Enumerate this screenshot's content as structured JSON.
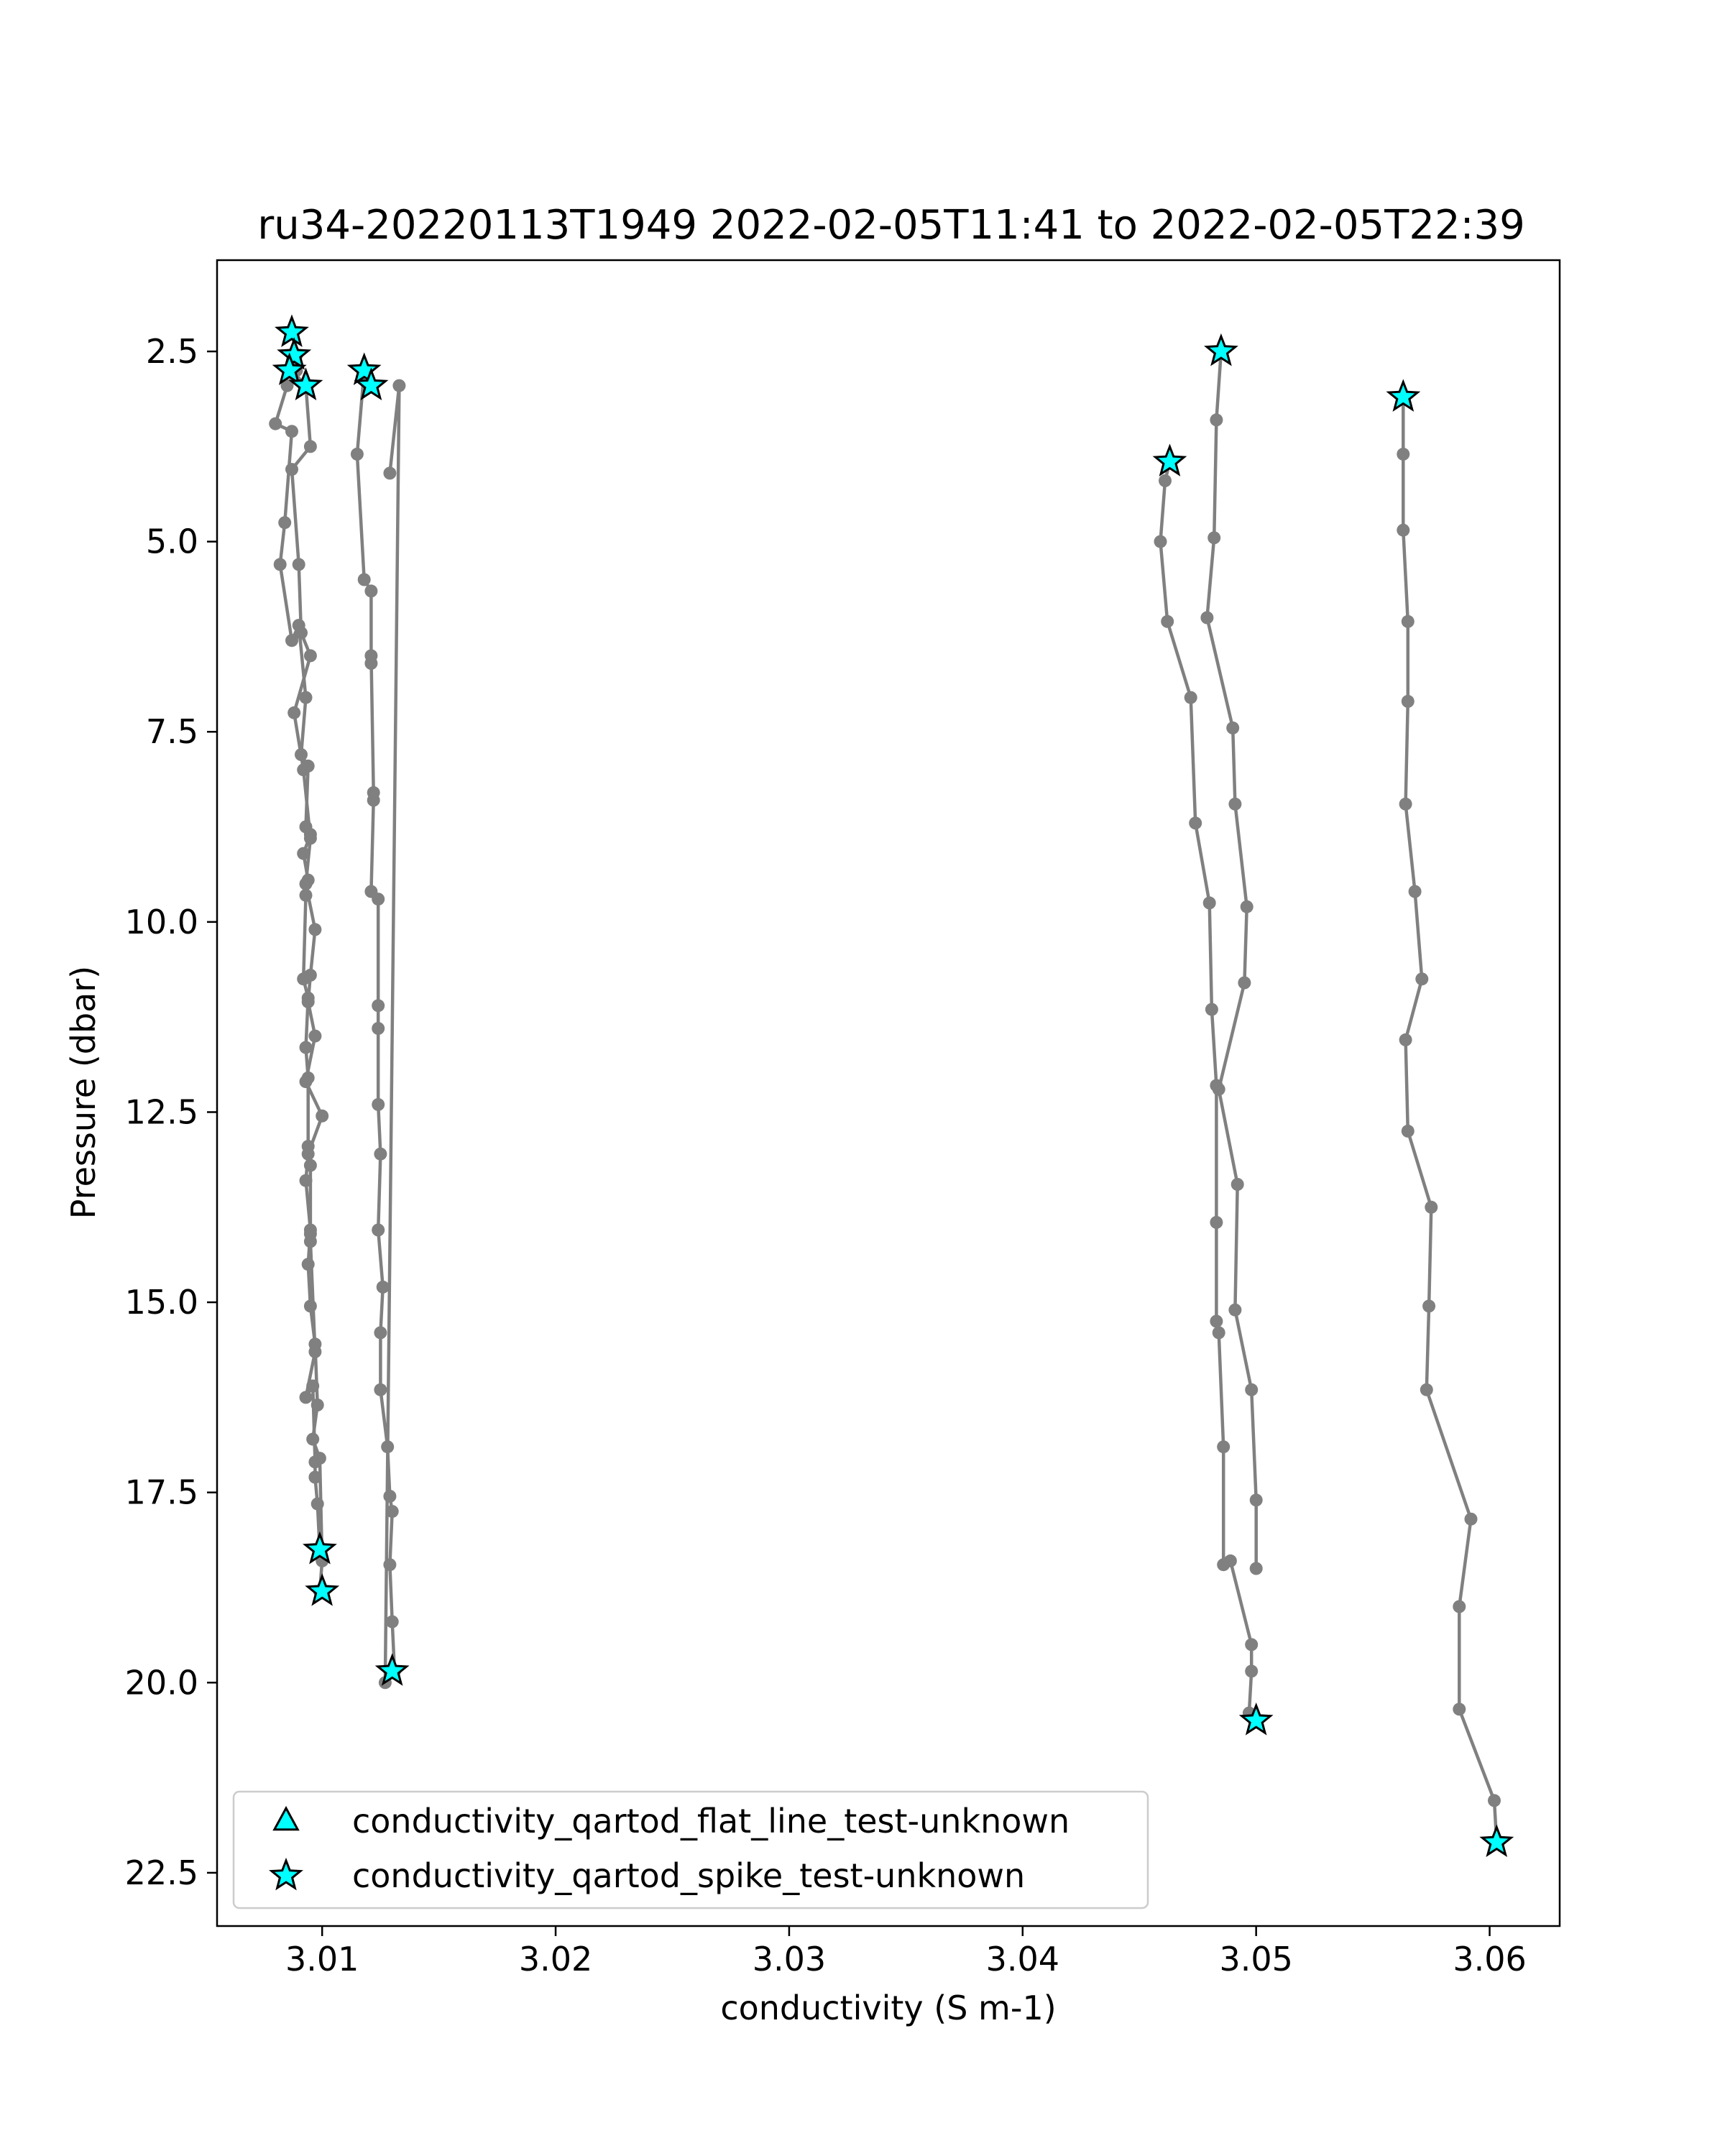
{
  "chart_data": {
    "type": "scatter",
    "title": "ru34-20220113T1949 2022-02-05T11:41 to 2022-02-05T22:39",
    "xlabel": "conductivity (S m-1)",
    "ylabel": "Pressure (dbar)",
    "xlim": [
      3.0055,
      3.063
    ],
    "ylim": [
      1.3,
      23.2
    ],
    "y_inverted": true,
    "grid": false,
    "legend_position": "lower-left",
    "x_ticks": [
      3.01,
      3.02,
      3.03,
      3.04,
      3.05,
      3.06
    ],
    "x_tick_labels": [
      "3.01",
      "3.02",
      "3.03",
      "3.04",
      "3.05",
      "3.06"
    ],
    "y_ticks": [
      2.5,
      5.0,
      7.5,
      10.0,
      12.5,
      15.0,
      17.5,
      20.0,
      22.5
    ],
    "y_tick_labels": [
      "2.5",
      "5.0",
      "7.5",
      "10.0",
      "12.5",
      "15.0",
      "17.5",
      "20.0",
      "22.5"
    ],
    "colors": {
      "profile_line": "#808080",
      "marker_fill": "#00ffff",
      "marker_edge": "#000000"
    },
    "profiles": [
      {
        "x": [
          3.0087,
          3.0089,
          3.0087,
          3.0093,
          3.0095,
          3.0087,
          3.009,
          3.0091,
          3.0095,
          3.0088,
          3.0092,
          3.0095,
          3.0093,
          3.0097,
          3.0095,
          3.0094,
          3.0097,
          3.0093,
          3.01,
          3.0094,
          3.0093,
          3.0095,
          3.0094,
          3.0095,
          3.0097,
          3.0098,
          3.0096,
          3.0099,
          3.01,
          3.0099
        ],
        "y": [
          2.25,
          2.55,
          2.75,
          2.95,
          3.75,
          4.05,
          5.3,
          6.2,
          6.5,
          7.25,
          8.0,
          8.9,
          9.5,
          10.1,
          10.7,
          11.05,
          11.5,
          12.1,
          12.55,
          13.05,
          13.4,
          14.05,
          14.5,
          15.05,
          15.55,
          16.35,
          16.8,
          17.05,
          18.4,
          18.8
        ]
      },
      {
        "x": [
          3.0089,
          3.0085,
          3.008,
          3.0087,
          3.0084,
          3.0082,
          3.0087,
          3.009,
          3.0093,
          3.0091,
          3.0094,
          3.0093,
          3.0095,
          3.0092,
          3.0094,
          3.0093,
          3.0092,
          3.0094,
          3.0093,
          3.0094,
          3.0094,
          3.0095,
          3.0095,
          3.0095,
          3.0097,
          3.0093,
          3.0096,
          3.0097,
          3.0097,
          3.0098,
          3.0099
        ],
        "y": [
          2.75,
          2.95,
          3.45,
          3.55,
          4.75,
          5.3,
          6.3,
          6.1,
          7.05,
          7.8,
          7.95,
          8.75,
          8.85,
          9.1,
          9.45,
          9.65,
          10.75,
          11.0,
          11.65,
          12.05,
          12.95,
          13.2,
          14.1,
          14.2,
          15.65,
          16.25,
          16.1,
          17.1,
          17.3,
          17.65,
          18.25
        ]
      },
      {
        "x": [
          3.0118,
          3.0115,
          3.0118,
          3.0121,
          3.0121,
          3.0121,
          3.0122,
          3.0122,
          3.0121,
          3.0124,
          3.0124,
          3.0124,
          3.0124,
          3.0125,
          3.0124,
          3.0126,
          3.0125,
          3.0125,
          3.0128,
          3.0129,
          3.013,
          3.0129,
          3.013,
          3.0131,
          3.0127,
          3.0133,
          3.0129
        ],
        "y": [
          2.75,
          3.85,
          5.5,
          5.65,
          6.6,
          6.5,
          8.3,
          8.4,
          9.6,
          9.7,
          11.1,
          11.4,
          12.4,
          13.05,
          14.05,
          14.8,
          15.4,
          16.15,
          16.9,
          17.55,
          17.75,
          18.45,
          19.2,
          19.85,
          20.0,
          2.95,
          4.1
        ]
      },
      {
        "x": [
          3.0463,
          3.0461,
          3.0459,
          3.0462,
          3.0472,
          3.0474,
          3.048,
          3.0481,
          3.0483,
          3.0483,
          3.0483,
          3.0484,
          3.0486,
          3.0486,
          3.0489,
          3.0498,
          3.0498,
          3.0497,
          3.05
        ],
        "y": [
          3.95,
          4.2,
          5.0,
          6.05,
          7.05,
          8.7,
          9.75,
          11.15,
          12.15,
          13.95,
          15.25,
          15.4,
          16.9,
          18.45,
          18.4,
          19.5,
          19.85,
          20.4,
          20.5
        ]
      },
      {
        "x": [
          3.0485,
          3.0483,
          3.0482,
          3.0479,
          3.049,
          3.0491,
          3.0496,
          3.0495,
          3.0484,
          3.0492,
          3.0491,
          3.0498,
          3.05,
          3.05
        ],
        "y": [
          2.5,
          3.4,
          4.95,
          6.0,
          7.45,
          8.45,
          9.8,
          10.8,
          12.2,
          13.45,
          15.1,
          16.15,
          17.6,
          18.5
        ]
      },
      {
        "x": [
          3.0563,
          3.0563,
          3.0563,
          3.0565,
          3.0565,
          3.0564,
          3.0568,
          3.0571,
          3.0564,
          3.0565,
          3.0575,
          3.0574,
          3.0573,
          3.0592,
          3.0587,
          3.0587,
          3.0602,
          3.0603
        ],
        "y": [
          3.1,
          3.85,
          4.85,
          6.05,
          7.1,
          8.45,
          9.6,
          10.75,
          11.55,
          12.75,
          13.75,
          15.05,
          16.15,
          17.85,
          19.0,
          20.35,
          21.55,
          22.1
        ]
      }
    ],
    "series": [
      {
        "name": "conductivity_qartod_flat_line_test-unknown",
        "marker": "triangle",
        "x": [],
        "y": []
      },
      {
        "name": "conductivity_qartod_spike_test-unknown",
        "marker": "star",
        "x": [
          3.0087,
          3.0088,
          3.0086,
          3.0093,
          3.0118,
          3.0121,
          3.0099,
          3.01,
          3.013,
          3.0485,
          3.0463,
          3.05,
          3.0563,
          3.0603
        ],
        "y": [
          2.25,
          2.55,
          2.75,
          2.95,
          2.75,
          2.95,
          18.25,
          18.8,
          19.85,
          2.5,
          3.95,
          20.5,
          3.1,
          22.1
        ]
      }
    ]
  }
}
